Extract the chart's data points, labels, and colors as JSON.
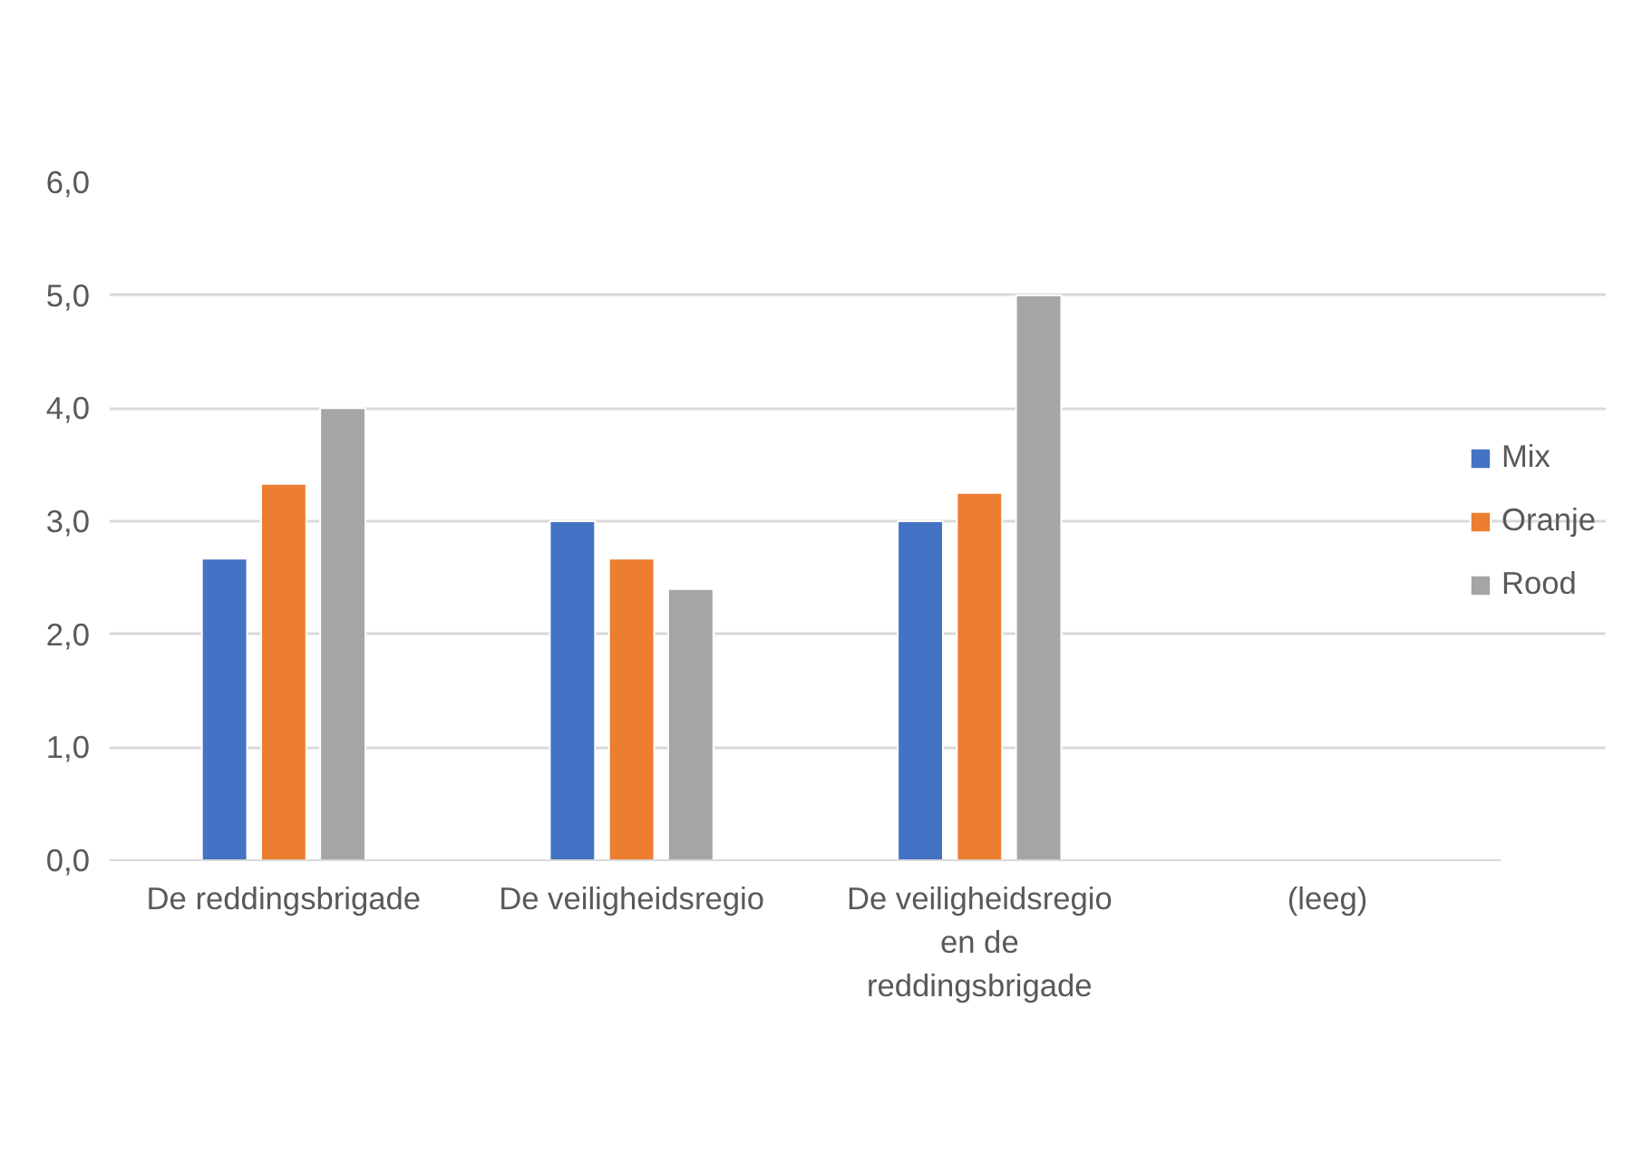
{
  "chart_data": {
    "type": "bar",
    "categories": [
      "De reddingsbrigade",
      "De veiligheidsregio",
      "De veiligheidsregio en de reddingsbrigade",
      "(leeg)"
    ],
    "series": [
      {
        "name": "Mix",
        "color": "#4472c4",
        "values": [
          2.67,
          3.0,
          3.0,
          null
        ]
      },
      {
        "name": "Oranje",
        "color": "#ed7d31",
        "values": [
          3.33,
          2.67,
          3.25,
          null
        ]
      },
      {
        "name": "Rood",
        "color": "#a5a5a5",
        "values": [
          4.0,
          2.4,
          5.0,
          null
        ]
      }
    ],
    "ylim": [
      0,
      6
    ],
    "yticks": [
      {
        "value": 0,
        "label": "0,0"
      },
      {
        "value": 1,
        "label": "1,0"
      },
      {
        "value": 2,
        "label": "2,0"
      },
      {
        "value": 3,
        "label": "3,0"
      },
      {
        "value": 4,
        "label": "4,0"
      },
      {
        "value": 5,
        "label": "5,0"
      },
      {
        "value": 6,
        "label": "6,0"
      }
    ],
    "grid": "y",
    "legend": "right"
  }
}
